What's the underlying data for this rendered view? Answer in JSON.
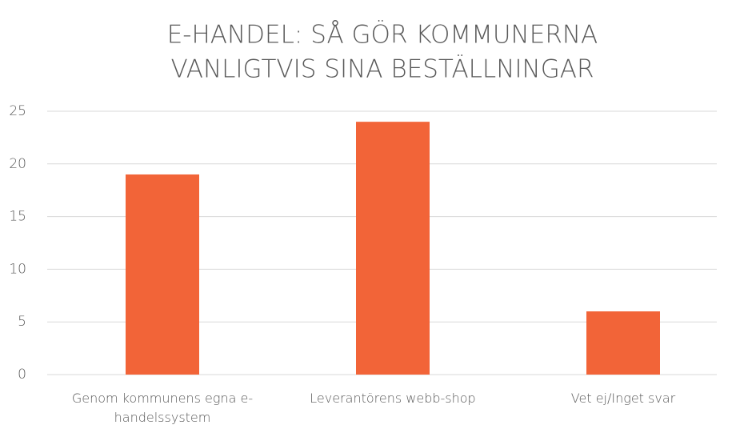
{
  "chart_data": {
    "type": "bar",
    "title": [
      "E-HANDEL: SÅ GÖR KOMMUNERNA",
      "VANLIGTVIS SINA BESTÄLLNINGAR"
    ],
    "categories": [
      "Genom kommunens egna e-handelssystem",
      "Leverantörens webb-shop",
      "Vet ej/Inget svar"
    ],
    "values": [
      19,
      24,
      6
    ],
    "color": "#f26438",
    "ylim": [
      0,
      25
    ],
    "yticks": [
      0,
      5,
      10,
      15,
      20,
      25
    ],
    "grid": true
  }
}
